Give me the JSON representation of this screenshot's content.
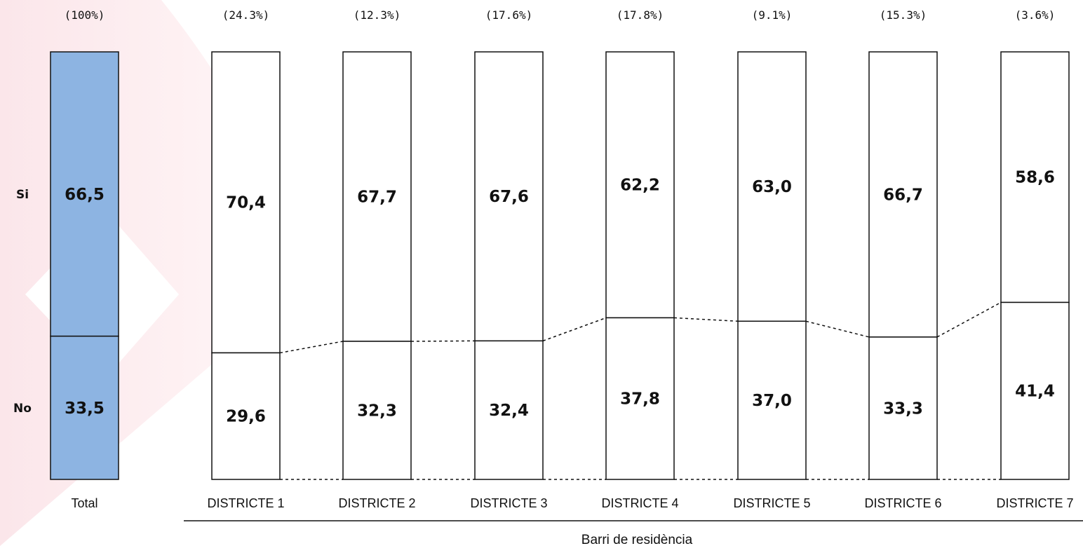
{
  "chart_data": {
    "type": "bar",
    "stacked": true,
    "normalized": true,
    "xlabel": "Barri de residència",
    "categories": [
      "Total",
      "DISTRICTE 1",
      "DISTRICTE 2",
      "DISTRICTE 3",
      "DISTRICTE 4",
      "DISTRICTE 5",
      "DISTRICTE 6",
      "DISTRICTE 7"
    ],
    "shares": [
      "(100%)",
      "(24.3%)",
      "(12.3%)",
      "(17.6%)",
      "(17.8%)",
      "(9.1%)",
      "(15.3%)",
      "(3.6%)"
    ],
    "row_labels": [
      "Si",
      "No"
    ],
    "series": [
      {
        "name": "Si",
        "values": [
          66.5,
          70.4,
          67.7,
          67.6,
          62.2,
          63.0,
          66.7,
          58.6
        ],
        "labels": [
          "66,5",
          "70,4",
          "67,7",
          "67,6",
          "62,2",
          "63,0",
          "66,7",
          "58,6"
        ]
      },
      {
        "name": "No",
        "values": [
          33.5,
          29.6,
          32.3,
          32.4,
          37.8,
          37.0,
          33.3,
          41.4
        ],
        "labels": [
          "33,5",
          "29,6",
          "32,3",
          "32,4",
          "37,8",
          "37,0",
          "33,3",
          "41,4"
        ]
      }
    ],
    "ylim": [
      0,
      100
    ],
    "colors": {
      "total_fill": "#8db4e2",
      "district_fill": "#ffffff",
      "stroke": "#111111"
    },
    "connectors": "dotted",
    "grid": false,
    "legend": "none"
  }
}
